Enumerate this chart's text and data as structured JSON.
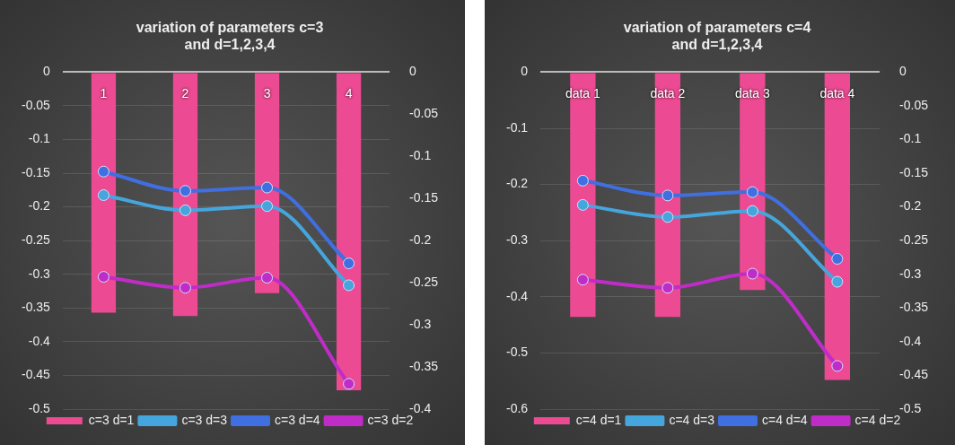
{
  "chart_data": [
    {
      "type": "bar",
      "title": "variation of parameters c=3 and d=1,2,3,4",
      "categories": [
        "1",
        "2",
        "3",
        "4"
      ],
      "series": [
        {
          "name": "c=3 d=1",
          "color": "#ec4a92",
          "values": [
            -0.357,
            -0.362,
            -0.328,
            -0.472
          ]
        },
        {
          "name": "c=3 d=3",
          "type": "line",
          "axis": "y2",
          "color": "#45a5dd",
          "values": [
            -0.146,
            -0.164,
            -0.159,
            -0.253
          ]
        },
        {
          "name": "c=3 d=4",
          "type": "line",
          "axis": "y2",
          "color": "#3f6fe0",
          "values": [
            -0.118,
            -0.141,
            -0.137,
            -0.227
          ]
        },
        {
          "name": "c=3 d=2",
          "type": "line",
          "axis": "y2",
          "color": "#c02cc8",
          "values": [
            -0.243,
            -0.256,
            -0.244,
            -0.37
          ]
        }
      ],
      "ylim": [
        -0.5,
        0
      ],
      "yticks": [
        -0.5,
        -0.45,
        -0.4,
        -0.35,
        -0.3,
        -0.25,
        -0.2,
        -0.15,
        -0.1,
        -0.05,
        0
      ],
      "y2lim": [
        -0.4,
        0
      ],
      "y2ticks": [
        -0.4,
        -0.35,
        -0.3,
        -0.25,
        -0.2,
        -0.15,
        -0.1,
        -0.05,
        0
      ],
      "grid": "y",
      "legend": "bottom",
      "marker": "circle"
    },
    {
      "type": "bar",
      "title": "variation of parameters c=4 and d=1,2,3,4",
      "categories": [
        "data 1",
        "data 2",
        "data 3",
        "data 4"
      ],
      "series": [
        {
          "name": "c=4 d=1",
          "color": "#ec4a92",
          "values": [
            -0.436,
            -0.436,
            -0.388,
            -0.548
          ]
        },
        {
          "name": "c=4 d=3",
          "type": "line",
          "axis": "y2",
          "color": "#45a5dd",
          "values": [
            -0.197,
            -0.215,
            -0.206,
            -0.311
          ]
        },
        {
          "name": "c=4 d=4",
          "type": "line",
          "axis": "y2",
          "color": "#3f6fe0",
          "values": [
            -0.161,
            -0.183,
            -0.178,
            -0.277
          ]
        },
        {
          "name": "c=4 d=2",
          "type": "line",
          "axis": "y2",
          "color": "#c02cc8",
          "values": [
            -0.308,
            -0.32,
            -0.299,
            -0.436
          ]
        }
      ],
      "ylim": [
        -0.6,
        0
      ],
      "yticks": [
        -0.6,
        -0.5,
        -0.4,
        -0.3,
        -0.2,
        -0.1,
        0
      ],
      "y2lim": [
        -0.5,
        0
      ],
      "y2ticks": [
        -0.5,
        -0.45,
        -0.4,
        -0.35,
        -0.3,
        -0.25,
        -0.2,
        -0.15,
        -0.1,
        -0.05,
        0
      ],
      "grid": "y",
      "legend": "bottom",
      "marker": "circle"
    }
  ]
}
